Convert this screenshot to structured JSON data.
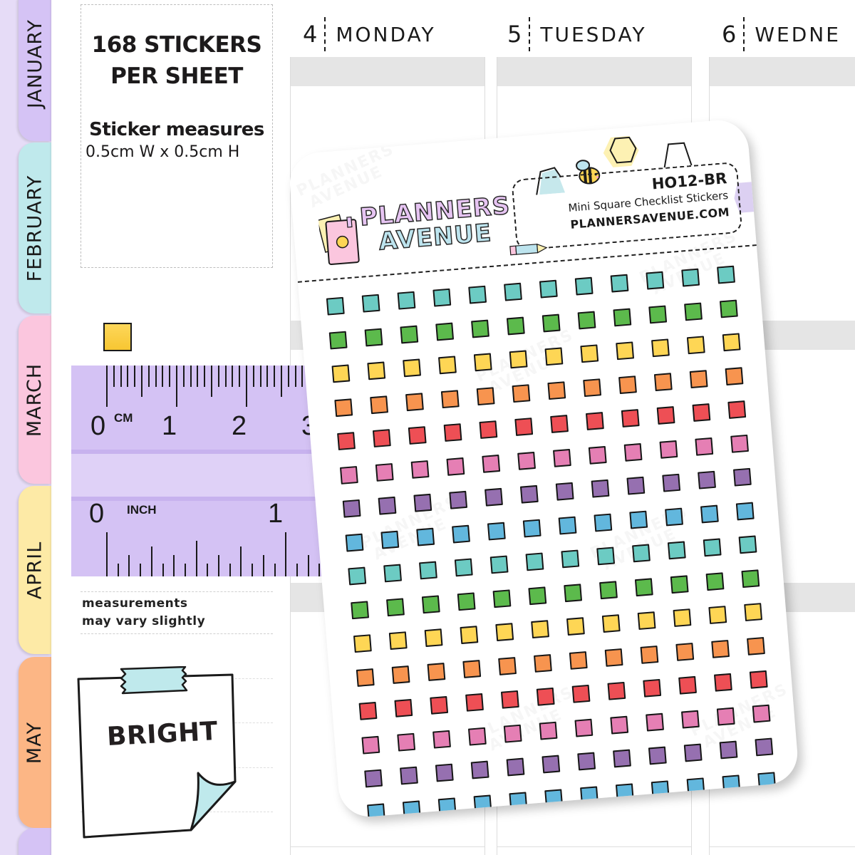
{
  "tabs": [
    {
      "label": "JANUARY",
      "color": "#d5c3f5"
    },
    {
      "label": "FEBRUARY",
      "color": "#bfe9ec"
    },
    {
      "label": "MARCH",
      "color": "#fbc6de"
    },
    {
      "label": "APRIL",
      "color": "#fdeaa6"
    },
    {
      "label": "MAY",
      "color": "#fcb685"
    },
    {
      "label": "",
      "color": "#d5c3f5"
    }
  ],
  "info": {
    "headline_line1": "168 STICKERS",
    "headline_line2": "PER SHEET",
    "measure_title": "Sticker measures",
    "measure_value": "0.5cm W  x  0.5cm H"
  },
  "days": [
    {
      "num": "4",
      "name": "MONDAY"
    },
    {
      "num": "5",
      "name": "TUESDAY"
    },
    {
      "num": "6",
      "name": "WEDNE"
    }
  ],
  "ruler": {
    "cm_unit": "CM",
    "cm_labels": [
      "0",
      "1",
      "2",
      "3"
    ],
    "inch_unit": "INCH",
    "inch_labels": [
      "0",
      "1"
    ],
    "color": "#d4c2f4"
  },
  "note": {
    "line1": "measurements",
    "line2": "may vary slightly"
  },
  "paper_note": {
    "label": "BRIGHT"
  },
  "sheet": {
    "brand_line1": "PLANNERS",
    "brand_line2": "AVENUE",
    "code": "HO12-BR",
    "title": "Mini Square Checklist Stickers",
    "website": "PLANNERSAVENUE.COM",
    "watermark": "PLANNERS AVENUE",
    "columns": 12,
    "row_colors": [
      "#6ccbc3",
      "#5cba4c",
      "#fed655",
      "#f7944f",
      "#ee4f55",
      "#e57fb4",
      "#9670b0",
      "#62b7dd",
      "#6ccbc3",
      "#5cba4c",
      "#fed655",
      "#f7944f",
      "#ee4f55",
      "#e57fb4",
      "#9670b0",
      "#62b7dd"
    ]
  }
}
